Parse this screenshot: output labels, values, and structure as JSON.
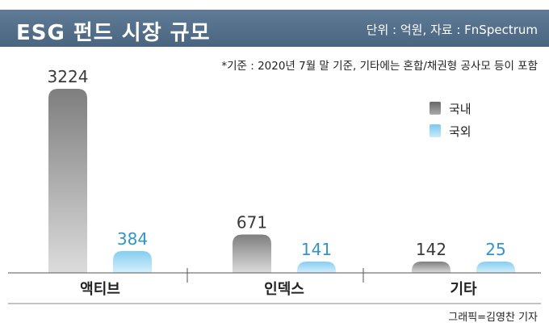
{
  "header": {
    "title": "ESG 펀드 시장 규모",
    "unit": "단위 : 억원, 자료 : FnSpectrum"
  },
  "note": "*기준 : 2020년 7월 말 기준, 기타에는 혼합/채권형 공사모 등이 포함",
  "credit": "그래픽=김영찬 기자",
  "colors": {
    "domestic": "#8f8f8f",
    "foreign": "#a9dcf4",
    "header_bg": "#54708b"
  },
  "chart_data": {
    "type": "bar",
    "categories": [
      "액티브",
      "인덱스",
      "기타"
    ],
    "series": [
      {
        "name": "국내",
        "values": [
          3224,
          671,
          142
        ]
      },
      {
        "name": "국외",
        "values": [
          384,
          141,
          25
        ]
      }
    ],
    "ylim": [
      0,
      3224
    ],
    "grid": false,
    "legend_position": "top-right",
    "data_labels": true
  }
}
